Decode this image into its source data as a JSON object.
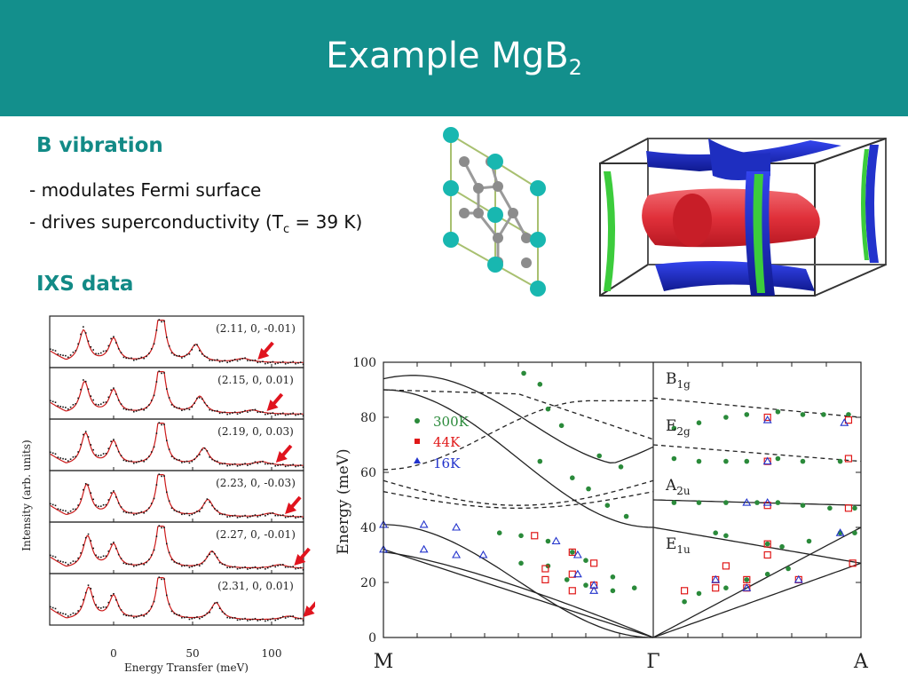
{
  "slide": {
    "title_main": "Example MgB",
    "title_sub": "2",
    "colors": {
      "header": "#138f8c",
      "heading": "#128a86",
      "arrow": "#e0141e",
      "fit": "#cc1a1a"
    }
  },
  "section_b": {
    "heading": "B vibration",
    "bullet1": "- modulates Fermi surface",
    "bullet2_pre": "- drives superconductivity (T",
    "bullet2_sub": "c",
    "bullet2_post": " = 39 K)"
  },
  "section_ixs": {
    "heading": "IXS data"
  },
  "crystal_figure": {
    "atom_types": [
      "Mg",
      "B"
    ],
    "colors": {
      "Mg": "#18b7b0",
      "B": "#8c8c8c",
      "cell": "#a8c070"
    }
  },
  "fermi_figure": {
    "colors": {
      "red": "#e0303a",
      "blue": "#2233cc",
      "green": "#3ccc3c"
    }
  },
  "ixs_chart": {
    "ylabel": "Intensity  (arb. units)",
    "xlabel": "Energy Transfer  (meV)",
    "xticks": [
      "0",
      "50",
      "100"
    ],
    "panels": [
      {
        "q": "(2.11,  0,  -0.01)"
      },
      {
        "q": "(2.15,  0,  0.01)"
      },
      {
        "q": "(2.19,  0,  0.03)"
      },
      {
        "q": "(2.23,  0,  -0.03)"
      },
      {
        "q": "(2.27,  0,  -0.01)"
      },
      {
        "q": "(2.31,  0,  0.01)"
      }
    ]
  },
  "chart_data": {
    "type": "scatter",
    "title": "",
    "ylabel": "Energy  (meV)",
    "ylim": [
      0,
      100
    ],
    "yticks": [
      "0",
      "20",
      "40",
      "60",
      "80",
      "100"
    ],
    "x_points": [
      "M",
      "Γ",
      "A"
    ],
    "legend": [
      "300K",
      "44K",
      "16K"
    ],
    "mode_labels": [
      {
        "main": "B",
        "sub": "1g"
      },
      {
        "main": "E",
        "sub": "2g"
      },
      {
        "main": "A",
        "sub": "2u"
      },
      {
        "main": "E",
        "sub": "1u"
      }
    ],
    "series": [
      {
        "name": "300K",
        "color": "#2a8a3a",
        "points_MG": [
          [
            0.52,
            96
          ],
          [
            0.58,
            92
          ],
          [
            0.61,
            83
          ],
          [
            0.66,
            77
          ],
          [
            0.8,
            66
          ],
          [
            0.88,
            62
          ],
          [
            0.58,
            64
          ],
          [
            0.7,
            58
          ],
          [
            0.76,
            54
          ],
          [
            0.83,
            48
          ],
          [
            0.9,
            44
          ],
          [
            0.43,
            38
          ],
          [
            0.51,
            37
          ],
          [
            0.61,
            35
          ],
          [
            0.7,
            31
          ],
          [
            0.75,
            28
          ],
          [
            0.85,
            22
          ],
          [
            0.93,
            18
          ],
          [
            0.51,
            27
          ],
          [
            0.61,
            26
          ],
          [
            0.68,
            21
          ],
          [
            0.75,
            19
          ],
          [
            0.85,
            17
          ]
        ],
        "points_GA": [
          [
            0.1,
            76
          ],
          [
            0.22,
            78
          ],
          [
            0.35,
            80
          ],
          [
            0.45,
            81
          ],
          [
            0.6,
            82
          ],
          [
            0.72,
            81
          ],
          [
            0.82,
            81
          ],
          [
            0.94,
            81
          ],
          [
            0.1,
            65
          ],
          [
            0.22,
            64
          ],
          [
            0.35,
            64
          ],
          [
            0.45,
            64
          ],
          [
            0.6,
            65
          ],
          [
            0.72,
            64
          ],
          [
            0.9,
            64
          ],
          [
            0.1,
            49
          ],
          [
            0.22,
            49
          ],
          [
            0.35,
            49
          ],
          [
            0.5,
            49
          ],
          [
            0.6,
            49
          ],
          [
            0.72,
            48
          ],
          [
            0.85,
            47
          ],
          [
            0.97,
            47
          ],
          [
            0.3,
            38
          ],
          [
            0.35,
            37
          ],
          [
            0.55,
            34
          ],
          [
            0.62,
            33
          ],
          [
            0.75,
            35
          ],
          [
            0.9,
            38
          ],
          [
            0.97,
            38
          ],
          [
            0.15,
            13
          ],
          [
            0.22,
            16
          ],
          [
            0.35,
            18
          ],
          [
            0.45,
            21
          ],
          [
            0.55,
            23
          ],
          [
            0.65,
            25
          ]
        ]
      },
      {
        "name": "44K",
        "color": "#e01818",
        "points_MG": [
          [
            0.56,
            37
          ],
          [
            0.7,
            31
          ],
          [
            0.78,
            27
          ],
          [
            0.6,
            25
          ],
          [
            0.7,
            23
          ],
          [
            0.78,
            19
          ],
          [
            0.6,
            21
          ],
          [
            0.7,
            17
          ]
        ],
        "points_GA": [
          [
            0.55,
            80
          ],
          [
            0.94,
            79
          ],
          [
            0.55,
            64
          ],
          [
            0.94,
            65
          ],
          [
            0.55,
            48
          ],
          [
            0.94,
            47
          ],
          [
            0.55,
            34
          ],
          [
            0.55,
            30
          ],
          [
            0.35,
            26
          ],
          [
            0.45,
            21
          ],
          [
            0.3,
            21
          ],
          [
            0.15,
            17
          ],
          [
            0.3,
            18
          ],
          [
            0.45,
            18
          ],
          [
            0.7,
            21
          ],
          [
            0.96,
            27
          ]
        ]
      },
      {
        "name": "16K",
        "color": "#2233cc",
        "points_MG": [
          [
            0.0,
            41
          ],
          [
            0.15,
            41
          ],
          [
            0.27,
            40
          ],
          [
            0.0,
            32
          ],
          [
            0.15,
            32
          ],
          [
            0.27,
            30
          ],
          [
            0.37,
            30
          ],
          [
            0.64,
            35
          ],
          [
            0.72,
            30
          ],
          [
            0.72,
            23
          ],
          [
            0.78,
            19
          ],
          [
            0.78,
            17
          ]
        ],
        "points_GA": [
          [
            0.55,
            79
          ],
          [
            0.92,
            78
          ],
          [
            0.55,
            64
          ],
          [
            0.45,
            49
          ],
          [
            0.55,
            49
          ],
          [
            0.3,
            21
          ],
          [
            0.45,
            18
          ],
          [
            0.7,
            21
          ],
          [
            0.9,
            38
          ]
        ]
      }
    ]
  }
}
